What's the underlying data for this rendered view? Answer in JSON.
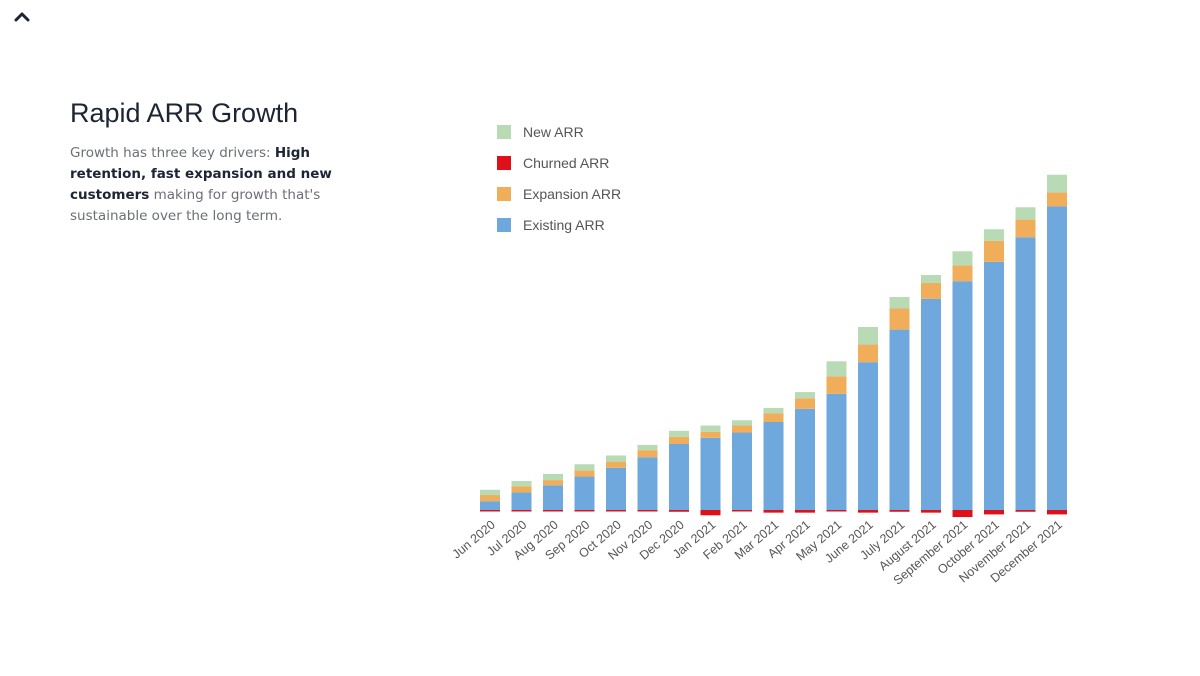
{
  "nav": {
    "collapse_icon": "chevron-up-icon"
  },
  "slide": {
    "title": "Rapid ARR Growth",
    "desc_prefix": "Growth has three key drivers: ",
    "desc_bold_1": "High retention, fast expansion and new customers",
    "desc_suffix": " making for growth that's sustainable over the long term."
  },
  "chart_data": {
    "type": "bar",
    "stacked": true,
    "categories": [
      "Jun 2020",
      "Jul 2020",
      "Aug 2020",
      "Sep 2020",
      "Oct 2020",
      "Nov 2020",
      "Dec 2020",
      "Jan 2021",
      "Feb 2021",
      "Mar 2021",
      "Apr 2021",
      "May 2021",
      "June 2021",
      "July 2021",
      "August 2021",
      "September 2021",
      "October 2021",
      "November 2021",
      "December 2021"
    ],
    "series": [
      {
        "name": "Existing ARR",
        "color": "#6fa8dc",
        "values": [
          10,
          20,
          28,
          38,
          48,
          60,
          75,
          82,
          88,
          100,
          115,
          132,
          168,
          205,
          240,
          260,
          282,
          310,
          345
        ]
      },
      {
        "name": "Expansion ARR",
        "color": "#f0ad5a",
        "values": [
          7,
          7,
          6,
          7,
          7,
          8,
          8,
          7,
          8,
          10,
          12,
          20,
          20,
          24,
          18,
          18,
          24,
          20,
          16
        ]
      },
      {
        "name": "New ARR",
        "color": "#b8dbb5",
        "values": [
          6,
          6,
          7,
          7,
          7,
          6,
          7,
          7,
          6,
          6,
          7,
          17,
          20,
          13,
          9,
          16,
          13,
          14,
          20
        ]
      },
      {
        "name": "Churned ARR",
        "color": "#e0101a",
        "values": [
          0,
          0,
          -1,
          -1,
          -1,
          -1,
          -2,
          -6,
          -1,
          -3,
          -3,
          -1,
          -3,
          -2,
          -3,
          -8,
          -5,
          -2,
          -5
        ]
      }
    ],
    "legend_order": [
      "New ARR",
      "Churned ARR",
      "Expansion ARR",
      "Existing ARR"
    ],
    "ylim": [
      -10,
      400
    ],
    "grid": false,
    "legend_position": "top-left"
  }
}
